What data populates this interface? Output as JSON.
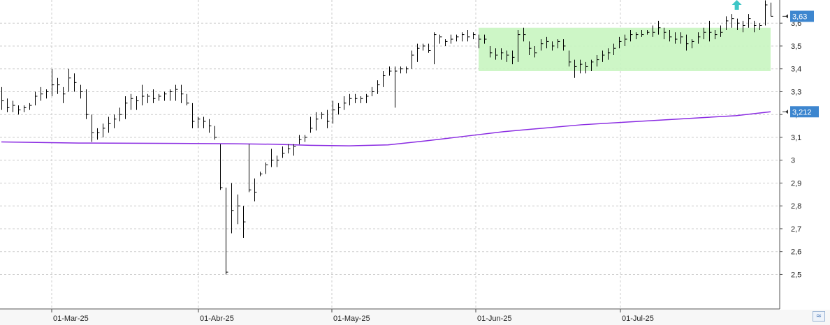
{
  "chart_data": {
    "type": "ohlc",
    "title": "",
    "xlabel": "",
    "ylabel": "",
    "ylim": [
      2.4,
      3.65
    ],
    "y_ticks": [
      "2,5",
      "2,6",
      "2,7",
      "2,8",
      "2,9",
      "3",
      "3,1",
      "3,2",
      "3,3",
      "3,4",
      "3,5",
      "3,6"
    ],
    "x_ticks": [
      "01-Mar-25",
      "01-Abr-25",
      "01-May-25",
      "01-Jun-25",
      "01-Jul-25"
    ],
    "grid": true,
    "colors": {
      "bars": "#000000",
      "moving_average": "#8a2be2",
      "range_zone": "#c8f5c0",
      "price_tag": "#3d86cf",
      "signal_arrow": "#3ec6c6",
      "grid": "#cccccc"
    },
    "bars": [
      [
        3.32,
        3.22,
        3.26
      ],
      [
        3.27,
        3.21,
        3.23
      ],
      [
        3.26,
        3.21,
        3.24
      ],
      [
        3.24,
        3.2,
        3.22
      ],
      [
        3.24,
        3.21,
        3.23
      ],
      [
        3.25,
        3.22,
        3.24
      ],
      [
        3.3,
        3.24,
        3.28
      ],
      [
        3.32,
        3.26,
        3.29
      ],
      [
        3.31,
        3.27,
        3.3
      ],
      [
        3.4,
        3.28,
        3.33
      ],
      [
        3.36,
        3.29,
        3.33
      ],
      [
        3.32,
        3.25,
        3.29
      ],
      [
        3.4,
        3.3,
        3.36
      ],
      [
        3.38,
        3.3,
        3.34
      ],
      [
        3.33,
        3.27,
        3.3
      ],
      [
        3.31,
        3.18,
        3.2
      ],
      [
        3.2,
        3.08,
        3.12
      ],
      [
        3.14,
        3.09,
        3.12
      ],
      [
        3.16,
        3.1,
        3.14
      ],
      [
        3.19,
        3.12,
        3.16
      ],
      [
        3.2,
        3.14,
        3.18
      ],
      [
        3.23,
        3.17,
        3.2
      ],
      [
        3.28,
        3.18,
        3.25
      ],
      [
        3.29,
        3.22,
        3.27
      ],
      [
        3.28,
        3.22,
        3.26
      ],
      [
        3.33,
        3.24,
        3.28
      ],
      [
        3.29,
        3.25,
        3.28
      ],
      [
        3.31,
        3.25,
        3.27
      ],
      [
        3.29,
        3.26,
        3.28
      ],
      [
        3.3,
        3.26,
        3.29
      ],
      [
        3.31,
        3.26,
        3.3
      ],
      [
        3.33,
        3.26,
        3.31
      ],
      [
        3.33,
        3.25,
        3.29
      ],
      [
        3.29,
        3.24,
        3.25
      ],
      [
        3.25,
        3.14,
        3.17
      ],
      [
        3.19,
        3.14,
        3.18
      ],
      [
        3.19,
        3.14,
        3.17
      ],
      [
        3.18,
        3.12,
        3.15
      ],
      [
        3.15,
        3.09,
        3.1
      ],
      [
        3.07,
        2.87,
        2.88
      ],
      [
        2.88,
        2.5,
        2.51
      ],
      [
        2.9,
        2.68,
        2.78
      ],
      [
        2.85,
        2.72,
        2.8
      ],
      [
        2.8,
        2.66,
        2.73
      ],
      [
        3.07,
        2.86,
        2.87
      ],
      [
        2.92,
        2.82,
        2.86
      ],
      [
        2.95,
        2.93,
        2.94
      ],
      [
        2.99,
        2.94,
        2.98
      ],
      [
        3.05,
        2.97,
        3.0
      ],
      [
        3.02,
        2.97,
        3.0
      ],
      [
        3.06,
        3.01,
        3.03
      ],
      [
        3.07,
        3.03,
        3.05
      ],
      [
        3.07,
        3.02,
        3.06
      ],
      [
        3.11,
        3.07,
        3.09
      ],
      [
        3.11,
        3.08,
        3.1
      ],
      [
        3.19,
        3.12,
        3.14
      ],
      [
        3.21,
        3.13,
        3.18
      ],
      [
        3.21,
        3.18,
        3.2
      ],
      [
        3.22,
        3.14,
        3.17
      ],
      [
        3.26,
        3.16,
        3.22
      ],
      [
        3.25,
        3.2,
        3.23
      ],
      [
        3.28,
        3.22,
        3.25
      ],
      [
        3.29,
        3.24,
        3.27
      ],
      [
        3.29,
        3.25,
        3.27
      ],
      [
        3.28,
        3.25,
        3.27
      ],
      [
        3.29,
        3.25,
        3.28
      ],
      [
        3.32,
        3.28,
        3.3
      ],
      [
        3.35,
        3.29,
        3.33
      ],
      [
        3.39,
        3.32,
        3.37
      ],
      [
        3.41,
        3.37,
        3.39
      ],
      [
        3.41,
        3.23,
        3.39
      ],
      [
        3.41,
        3.38,
        3.4
      ],
      [
        3.41,
        3.38,
        3.4
      ],
      [
        3.48,
        3.4,
        3.46
      ],
      [
        3.51,
        3.43,
        3.49
      ],
      [
        3.51,
        3.48,
        3.5
      ],
      [
        3.51,
        3.47,
        3.48
      ],
      [
        3.56,
        3.42,
        3.55
      ],
      [
        3.55,
        3.51,
        3.54
      ],
      [
        3.53,
        3.5,
        3.52
      ],
      [
        3.55,
        3.51,
        3.53
      ],
      [
        3.55,
        3.52,
        3.54
      ],
      [
        3.56,
        3.52,
        3.55
      ],
      [
        3.57,
        3.52,
        3.54
      ],
      [
        3.56,
        3.53,
        3.55
      ],
      [
        3.55,
        3.49,
        3.53
      ],
      [
        3.55,
        3.51,
        3.53
      ],
      [
        3.5,
        3.45,
        3.47
      ],
      [
        3.49,
        3.44,
        3.46
      ],
      [
        3.49,
        3.44,
        3.47
      ],
      [
        3.48,
        3.43,
        3.46
      ],
      [
        3.48,
        3.42,
        3.45
      ],
      [
        3.57,
        3.43,
        3.55
      ],
      [
        3.58,
        3.52,
        3.55
      ],
      [
        3.52,
        3.46,
        3.49
      ],
      [
        3.5,
        3.45,
        3.47
      ],
      [
        3.53,
        3.48,
        3.51
      ],
      [
        3.54,
        3.49,
        3.52
      ],
      [
        3.52,
        3.48,
        3.5
      ],
      [
        3.53,
        3.49,
        3.52
      ],
      [
        3.53,
        3.48,
        3.5
      ],
      [
        3.48,
        3.41,
        3.43
      ],
      [
        3.44,
        3.36,
        3.41
      ],
      [
        3.44,
        3.38,
        3.42
      ],
      [
        3.43,
        3.38,
        3.41
      ],
      [
        3.44,
        3.39,
        3.43
      ],
      [
        3.46,
        3.41,
        3.44
      ],
      [
        3.48,
        3.43,
        3.46
      ],
      [
        3.49,
        3.44,
        3.47
      ],
      [
        3.51,
        3.46,
        3.49
      ],
      [
        3.54,
        3.49,
        3.52
      ],
      [
        3.55,
        3.5,
        3.53
      ],
      [
        3.57,
        3.52,
        3.55
      ],
      [
        3.56,
        3.53,
        3.55
      ],
      [
        3.57,
        3.54,
        3.55
      ],
      [
        3.57,
        3.55,
        3.56
      ],
      [
        3.59,
        3.54,
        3.56
      ],
      [
        3.61,
        3.55,
        3.58
      ],
      [
        3.58,
        3.53,
        3.56
      ],
      [
        3.57,
        3.52,
        3.54
      ],
      [
        3.56,
        3.51,
        3.53
      ],
      [
        3.56,
        3.51,
        3.54
      ],
      [
        3.55,
        3.48,
        3.51
      ],
      [
        3.53,
        3.49,
        3.52
      ],
      [
        3.56,
        3.51,
        3.54
      ],
      [
        3.58,
        3.53,
        3.56
      ],
      [
        3.61,
        3.52,
        3.56
      ],
      [
        3.57,
        3.53,
        3.55
      ],
      [
        3.59,
        3.54,
        3.56
      ],
      [
        3.63,
        3.57,
        3.61
      ],
      [
        3.64,
        3.58,
        3.62
      ],
      [
        3.62,
        3.57,
        3.6
      ],
      [
        3.61,
        3.56,
        3.59
      ],
      [
        3.64,
        3.58,
        3.62
      ],
      [
        3.61,
        3.56,
        3.59
      ],
      [
        3.6,
        3.57,
        3.59
      ],
      [
        3.7,
        3.59,
        3.68
      ],
      [
        3.69,
        3.63,
        3.63
      ]
    ],
    "moving_average": [
      [
        0,
        3.08
      ],
      [
        20,
        3.075
      ],
      [
        40,
        3.074
      ],
      [
        60,
        3.072
      ],
      [
        70,
        3.07
      ],
      [
        80,
        3.065
      ],
      [
        90,
        3.063
      ],
      [
        100,
        3.067
      ],
      [
        110,
        3.085
      ],
      [
        120,
        3.105
      ],
      [
        130,
        3.125
      ],
      [
        140,
        3.14
      ],
      [
        150,
        3.155
      ],
      [
        160,
        3.165
      ],
      [
        170,
        3.175
      ],
      [
        180,
        3.185
      ],
      [
        190,
        3.195
      ],
      [
        199,
        3.212
      ]
    ],
    "range_zone": {
      "x_start": 0.62,
      "x_end": 1.0,
      "y_low": 3.39,
      "y_high": 3.58
    },
    "signal_arrow": {
      "x": 0.945,
      "y": 3.68
    },
    "price_tags": [
      {
        "label": "3,63",
        "value": 3.63
      },
      {
        "label": "3,212",
        "value": 3.212
      }
    ]
  },
  "corner_button": {
    "icon": "chart-toggle-icon",
    "glyph": "≈"
  }
}
